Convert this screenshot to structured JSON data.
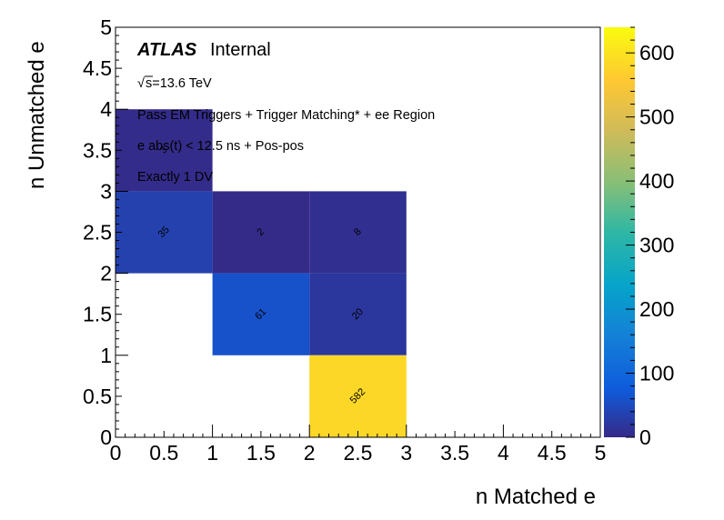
{
  "chart_data": {
    "type": "heatmap",
    "title": "",
    "xlabel": "n Matched e",
    "ylabel": "n Unmatched e",
    "xlim": [
      0,
      5
    ],
    "ylim": [
      0,
      5
    ],
    "x_ticks": [
      "0",
      "0.5",
      "1",
      "1.5",
      "2",
      "2.5",
      "3",
      "3.5",
      "4",
      "4.5",
      "5"
    ],
    "y_ticks": [
      "0",
      "0.5",
      "1",
      "1.5",
      "2",
      "2.5",
      "3",
      "3.5",
      "4",
      "4.5",
      "5"
    ],
    "zlim": [
      0,
      640
    ],
    "z_ticks": [
      "0",
      "100",
      "200",
      "300",
      "400",
      "500",
      "600"
    ],
    "colormap": "viridis",
    "cells": [
      {
        "x": [
          0,
          1
        ],
        "y": [
          3,
          4
        ],
        "value": 3,
        "label": "3"
      },
      {
        "x": [
          0,
          1
        ],
        "y": [
          2,
          3
        ],
        "value": 35,
        "label": "35"
      },
      {
        "x": [
          1,
          2
        ],
        "y": [
          2,
          3
        ],
        "value": 2,
        "label": "2"
      },
      {
        "x": [
          2,
          3
        ],
        "y": [
          2,
          3
        ],
        "value": 8,
        "label": "8"
      },
      {
        "x": [
          1,
          2
        ],
        "y": [
          1,
          2
        ],
        "value": 61,
        "label": "61"
      },
      {
        "x": [
          2,
          3
        ],
        "y": [
          1,
          2
        ],
        "value": 20,
        "label": "20"
      },
      {
        "x": [
          2,
          3
        ],
        "y": [
          0,
          1
        ],
        "value": 582,
        "label": "582"
      }
    ],
    "annotations": {
      "atlas": "ATLAS",
      "internal": "Internal",
      "sqrt_symbol": "√",
      "energy": "s=13.6 TeV",
      "line1": "Pass EM Triggers + Trigger Matching* + ee Region",
      "line2": "e abs(t) < 12.5 ns + Pos-pos",
      "line3": "Exactly 1 DV"
    },
    "grid": false,
    "legend": "colorbar-right"
  }
}
